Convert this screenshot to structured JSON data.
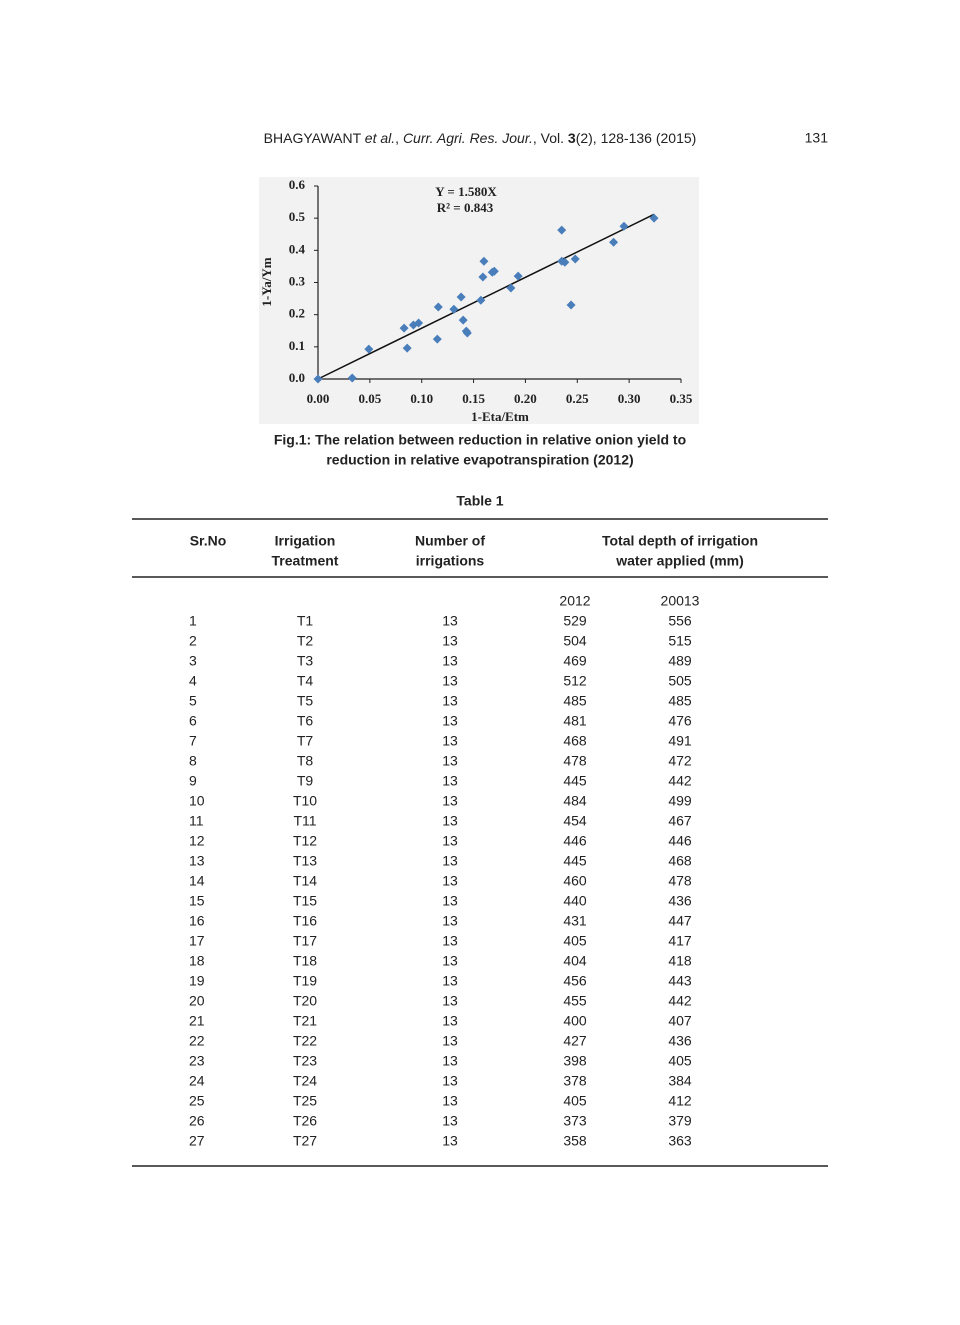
{
  "header": {
    "citation": [
      "BHAGYAWANT ",
      "et al.",
      ", ",
      "Curr. Agri. Res. Jour.",
      ", Vol. ",
      "3",
      "(2), 128-136 (2015)"
    ],
    "page_number": "131"
  },
  "chart_data": {
    "type": "scatter",
    "x_label": "1-Eta/Etm",
    "y_label": "1-Ya/Ym",
    "annotations": [
      "Y = 1.580X",
      "R² = 0.843"
    ],
    "trendline_slope": 1.58,
    "color": "#4a7ebb",
    "x": [
      0,
      0.033,
      0.049,
      0.083,
      0.086,
      0.092,
      0.097,
      0.115,
      0.116,
      0.131,
      0.138,
      0.14,
      0.143,
      0.144,
      0.157,
      0.159,
      0.16,
      0.168,
      0.17,
      0.186,
      0.193,
      0.235,
      0.235,
      0.238,
      0.244,
      0.248,
      0.285,
      0.295,
      0.324
    ],
    "values": [
      0,
      0.003,
      0.093,
      0.158,
      0.096,
      0.168,
      0.174,
      0.124,
      0.224,
      0.217,
      0.255,
      0.183,
      0.149,
      0.143,
      0.245,
      0.317,
      0.366,
      0.332,
      0.335,
      0.283,
      0.32,
      0.463,
      0.366,
      0.363,
      0.23,
      0.373,
      0.425,
      0.475,
      0.5
    ],
    "xlim": [
      0,
      0.35
    ],
    "ylim": [
      0,
      0.6
    ],
    "xticks": [
      {
        "value": 0,
        "label": "0.00"
      },
      {
        "value": 0.05,
        "label": "0.05"
      },
      {
        "value": 0.1,
        "label": "0.10"
      },
      {
        "value": 0.15,
        "label": "0.15"
      },
      {
        "value": 0.2,
        "label": "0.20"
      },
      {
        "value": 0.25,
        "label": "0.25"
      },
      {
        "value": 0.3,
        "label": "0.30"
      },
      {
        "value": 0.35,
        "label": "0.35"
      }
    ],
    "yticks": [
      {
        "value": 0,
        "label": "0.0"
      },
      0.1,
      0.2,
      0.3,
      0.4,
      0.5,
      0.6
    ]
  },
  "caption": [
    "Fig.1: The relation between reduction in relative onion yield to",
    "reduction in relative evapotranspiration (2012)"
  ],
  "table": {
    "title": "Table 1",
    "headers": [
      [
        "Sr.No"
      ],
      [
        "Irrigation",
        "Treatment"
      ],
      [
        "Number of",
        "irrigations"
      ],
      [
        "Total depth of irrigation",
        "water applied (mm)"
      ]
    ],
    "years": [
      "2012",
      "20013"
    ],
    "rows": [
      [
        1,
        "T1",
        13,
        529,
        556
      ],
      [
        2,
        "T2",
        13,
        504,
        515
      ],
      [
        3,
        "T3",
        13,
        469,
        489
      ],
      [
        4,
        "T4",
        13,
        512,
        505
      ],
      [
        5,
        "T5",
        13,
        485,
        485
      ],
      [
        6,
        "T6",
        13,
        481,
        476
      ],
      [
        7,
        "T7",
        13,
        468,
        491
      ],
      [
        8,
        "T8",
        13,
        478,
        472
      ],
      [
        9,
        "T9",
        13,
        445,
        442
      ],
      [
        10,
        "T10",
        13,
        484,
        499
      ],
      [
        11,
        "T11",
        13,
        454,
        467
      ],
      [
        12,
        "T12",
        13,
        446,
        446
      ],
      [
        13,
        "T13",
        13,
        445,
        468
      ],
      [
        14,
        "T14",
        13,
        460,
        478
      ],
      [
        15,
        "T15",
        13,
        440,
        436
      ],
      [
        16,
        "T16",
        13,
        431,
        447
      ],
      [
        17,
        "T17",
        13,
        405,
        417
      ],
      [
        18,
        "T18",
        13,
        404,
        418
      ],
      [
        19,
        "T19",
        13,
        456,
        443
      ],
      [
        20,
        "T20",
        13,
        455,
        442
      ],
      [
        21,
        "T21",
        13,
        400,
        407
      ],
      [
        22,
        "T22",
        13,
        427,
        436
      ],
      [
        23,
        "T23",
        13,
        398,
        405
      ],
      [
        24,
        "T24",
        13,
        378,
        384
      ],
      [
        25,
        "T25",
        13,
        405,
        412
      ],
      [
        26,
        "T26",
        13,
        373,
        379
      ],
      [
        27,
        "T27",
        13,
        358,
        363
      ]
    ]
  }
}
